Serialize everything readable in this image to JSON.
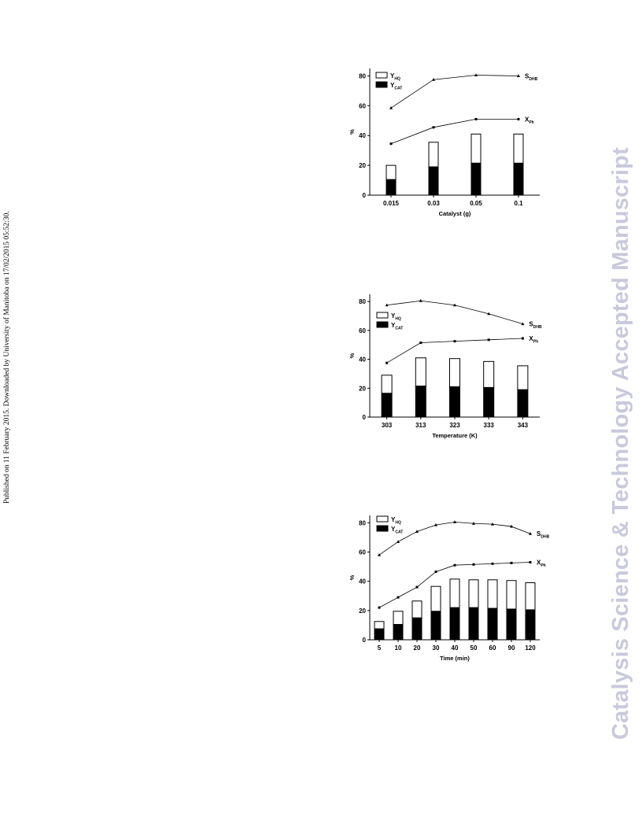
{
  "side_note": "Published on 11 February 2015. Downloaded by University of Manitoba on 17/02/2015 05:52:30.",
  "watermark": "Catalysis Science & Technology Accepted Manuscript",
  "chart_data": [
    {
      "type": "bar",
      "categories": [
        "0.015",
        "0.03",
        "0.05",
        "0.1"
      ],
      "xlabel": "Catalyst (g)",
      "ylabel": "%",
      "ylim": [
        0,
        85
      ],
      "yticks": [
        0,
        20,
        40,
        60,
        80
      ],
      "series": [
        {
          "name": "Y_CAT",
          "name_main": "Y",
          "name_sub": "CAT",
          "kind": "bar",
          "color": "#000000",
          "values": [
            10.5,
            19,
            21.5,
            21.5
          ]
        },
        {
          "name": "Y_HQ",
          "name_main": "Y",
          "name_sub": "HQ",
          "kind": "bar",
          "color": "#ffffff",
          "values": [
            9.5,
            16.5,
            19.5,
            19.5
          ]
        },
        {
          "name": "S_DHB",
          "name_main": "S",
          "name_sub": "DHB",
          "kind": "line",
          "marker": "triangle",
          "values": [
            58.5,
            77.5,
            80.5,
            80
          ]
        },
        {
          "name": "X_Ph",
          "name_main": "X",
          "name_sub": "Ph",
          "kind": "line",
          "marker": "square",
          "values": [
            34.5,
            45.5,
            51,
            51
          ]
        }
      ],
      "legend": "top-left",
      "grid": false
    },
    {
      "type": "bar",
      "categories": [
        "303",
        "313",
        "323",
        "333",
        "343"
      ],
      "xlabel": "Temperature (K)",
      "ylabel": "%",
      "ylim": [
        0,
        85
      ],
      "yticks": [
        0,
        20,
        40,
        60,
        80
      ],
      "series": [
        {
          "name": "Y_CAT",
          "name_main": "Y",
          "name_sub": "CAT",
          "kind": "bar",
          "color": "#000000",
          "values": [
            16.5,
            21.5,
            21,
            20.5,
            19
          ]
        },
        {
          "name": "Y_HQ",
          "name_main": "Y",
          "name_sub": "HQ",
          "kind": "bar",
          "color": "#ffffff",
          "values": [
            12.5,
            19.5,
            19.5,
            18,
            16.5
          ]
        },
        {
          "name": "S_DHB",
          "name_main": "S",
          "name_sub": "DHB",
          "kind": "line",
          "marker": "triangle",
          "values": [
            77.5,
            80.5,
            77.5,
            71.5,
            64.5
          ]
        },
        {
          "name": "X_Ph",
          "name_main": "X",
          "name_sub": "Ph",
          "kind": "line",
          "marker": "square",
          "values": [
            37.5,
            51.5,
            52.5,
            53.5,
            54.5
          ]
        }
      ],
      "legend": "left",
      "grid": false
    },
    {
      "type": "bar",
      "categories": [
        "5",
        "10",
        "20",
        "30",
        "40",
        "50",
        "60",
        "90",
        "120"
      ],
      "xlabel": "Time (min)",
      "ylabel": "%",
      "ylim": [
        0,
        85
      ],
      "yticks": [
        0,
        20,
        40,
        60,
        80
      ],
      "series": [
        {
          "name": "Y_CAT",
          "name_main": "Y",
          "name_sub": "CAT",
          "kind": "bar",
          "color": "#000000",
          "values": [
            7.5,
            10.5,
            15,
            19.5,
            22,
            22,
            21.5,
            21,
            20.5
          ]
        },
        {
          "name": "Y_HQ",
          "name_main": "Y",
          "name_sub": "HQ",
          "kind": "bar",
          "color": "#ffffff",
          "values": [
            5,
            9,
            11.5,
            17,
            19.5,
            19,
            19.5,
            19.5,
            18.5
          ]
        },
        {
          "name": "S_DHB",
          "name_main": "S",
          "name_sub": "DHB",
          "kind": "line",
          "marker": "triangle",
          "values": [
            58,
            67,
            74,
            78.5,
            80.5,
            79.5,
            79,
            77.5,
            72.5
          ]
        },
        {
          "name": "X_Ph",
          "name_main": "X",
          "name_sub": "Ph",
          "kind": "line",
          "marker": "square",
          "values": [
            22,
            29,
            36,
            46.5,
            51,
            51.5,
            52,
            52.5,
            53
          ]
        }
      ],
      "legend": "top-left",
      "grid": false
    }
  ]
}
